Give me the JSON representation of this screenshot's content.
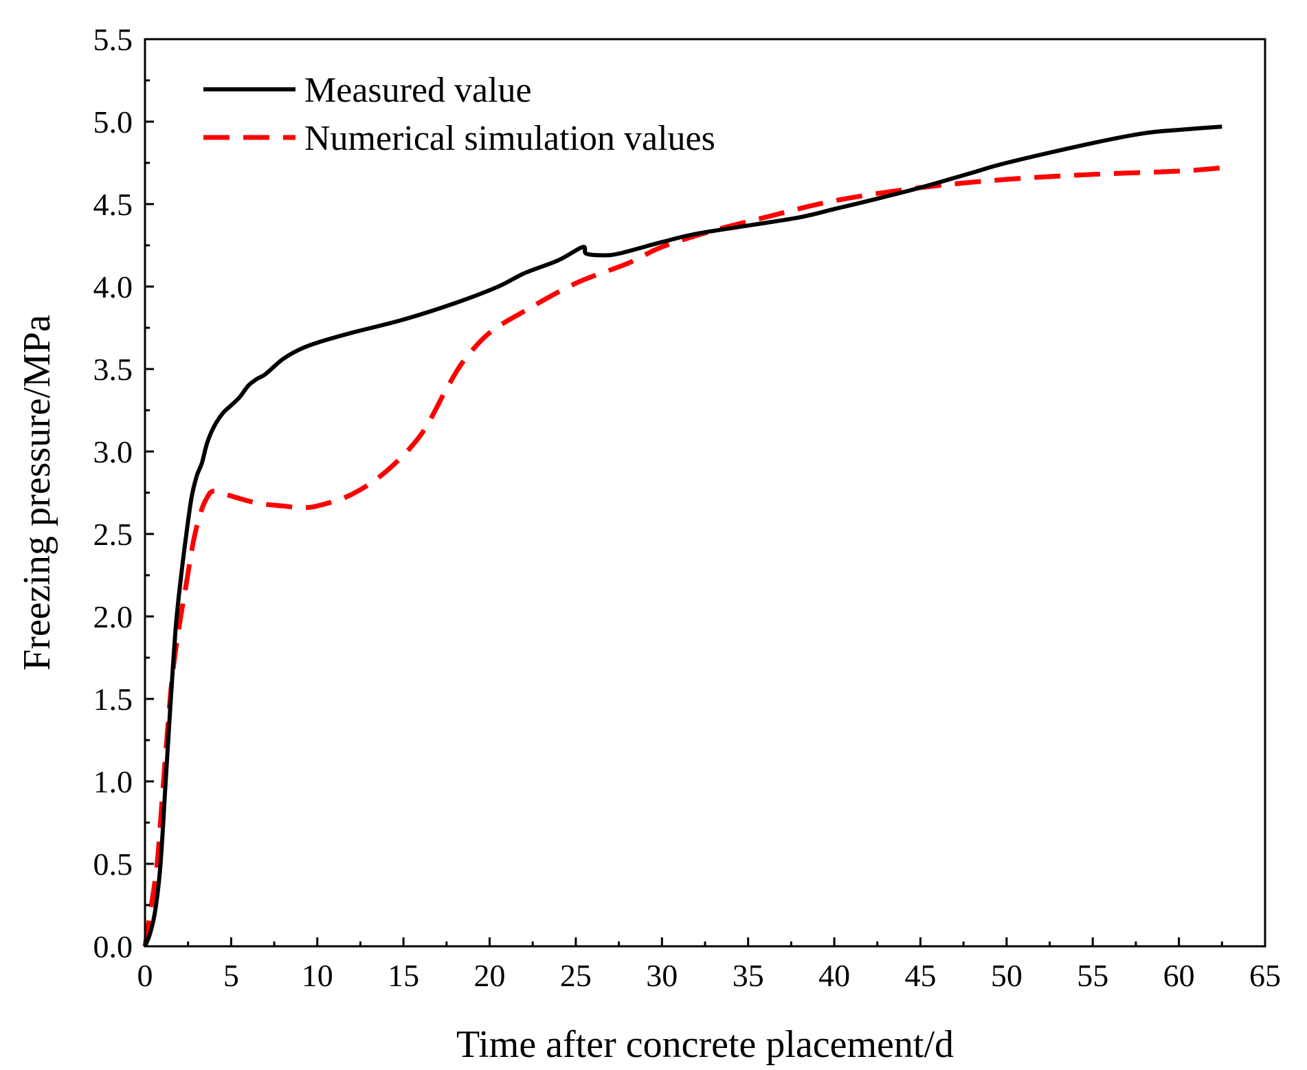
{
  "chart_data": {
    "type": "line",
    "title": "",
    "xlabel": "Time after concrete placement/d",
    "ylabel": "Freezing pressure/MPa",
    "xlim": [
      0,
      65
    ],
    "ylim": [
      0,
      5.5
    ],
    "xticks": [
      0,
      5,
      10,
      15,
      20,
      25,
      30,
      35,
      40,
      45,
      50,
      55,
      60,
      65
    ],
    "xtick_labels": [
      "0",
      "5",
      "10",
      "15",
      "20",
      "25",
      "30",
      "35",
      "40",
      "45",
      "50",
      "55",
      "60",
      "65"
    ],
    "yticks": [
      0,
      0.5,
      1,
      1.5,
      2,
      2.5,
      3,
      3.5,
      4,
      4.5,
      5,
      5.5
    ],
    "ytick_labels": [
      "0.0",
      "0.5",
      "1.0",
      "1.5",
      "2.0",
      "2.5",
      "3.0",
      "3.5",
      "4.0",
      "4.5",
      "5.0",
      "5.5"
    ],
    "grid": false,
    "legend_position": "top-left",
    "series": [
      {
        "name": "Measured value",
        "color": "#000000",
        "style": "solid",
        "x": [
          0,
          0.3,
          0.6,
          0.9,
          1.2,
          1.5,
          1.8,
          2.1,
          2.4,
          2.7,
          3.0,
          3.3,
          3.6,
          4.0,
          4.5,
          5.0,
          5.5,
          6.0,
          6.5,
          7.0,
          8.0,
          9.0,
          10.0,
          12.0,
          15.0,
          18.0,
          20.5,
          22.0,
          24.0,
          25.4,
          25.6,
          26.5,
          27.5,
          30.0,
          32.0,
          35.0,
          38.0,
          40.0,
          42.0,
          45.0,
          48.0,
          50.0,
          55.0,
          58.0,
          60.0,
          62.5
        ],
        "y": [
          0,
          0.08,
          0.22,
          0.5,
          1.0,
          1.5,
          1.95,
          2.25,
          2.5,
          2.72,
          2.85,
          2.93,
          3.05,
          3.15,
          3.23,
          3.28,
          3.33,
          3.4,
          3.44,
          3.47,
          3.56,
          3.62,
          3.66,
          3.72,
          3.8,
          3.9,
          4.0,
          4.08,
          4.16,
          4.24,
          4.2,
          4.19,
          4.2,
          4.27,
          4.32,
          4.37,
          4.42,
          4.47,
          4.52,
          4.6,
          4.69,
          4.75,
          4.87,
          4.93,
          4.95,
          4.97
        ]
      },
      {
        "name": "Numerical simulation values",
        "color": "#ff0000",
        "style": "dashed",
        "x": [
          0,
          0.3,
          0.7,
          1.0,
          1.3,
          1.6,
          2.0,
          2.4,
          2.8,
          3.2,
          3.6,
          4.0,
          5.0,
          6.0,
          7.0,
          8.0,
          9.0,
          10.0,
          12.0,
          14.0,
          16.0,
          17.5,
          18.5,
          20.0,
          22.0,
          25.0,
          28.0,
          30.0,
          33.0,
          36.0,
          40.0,
          45.0,
          50.0,
          55.0,
          60.0,
          62.5
        ],
        "y": [
          0,
          0.2,
          0.5,
          0.9,
          1.3,
          1.65,
          1.95,
          2.2,
          2.45,
          2.62,
          2.72,
          2.76,
          2.73,
          2.7,
          2.68,
          2.67,
          2.66,
          2.67,
          2.74,
          2.88,
          3.1,
          3.38,
          3.55,
          3.72,
          3.85,
          4.02,
          4.14,
          4.24,
          4.34,
          4.42,
          4.52,
          4.6,
          4.65,
          4.68,
          4.7,
          4.72
        ]
      }
    ]
  }
}
